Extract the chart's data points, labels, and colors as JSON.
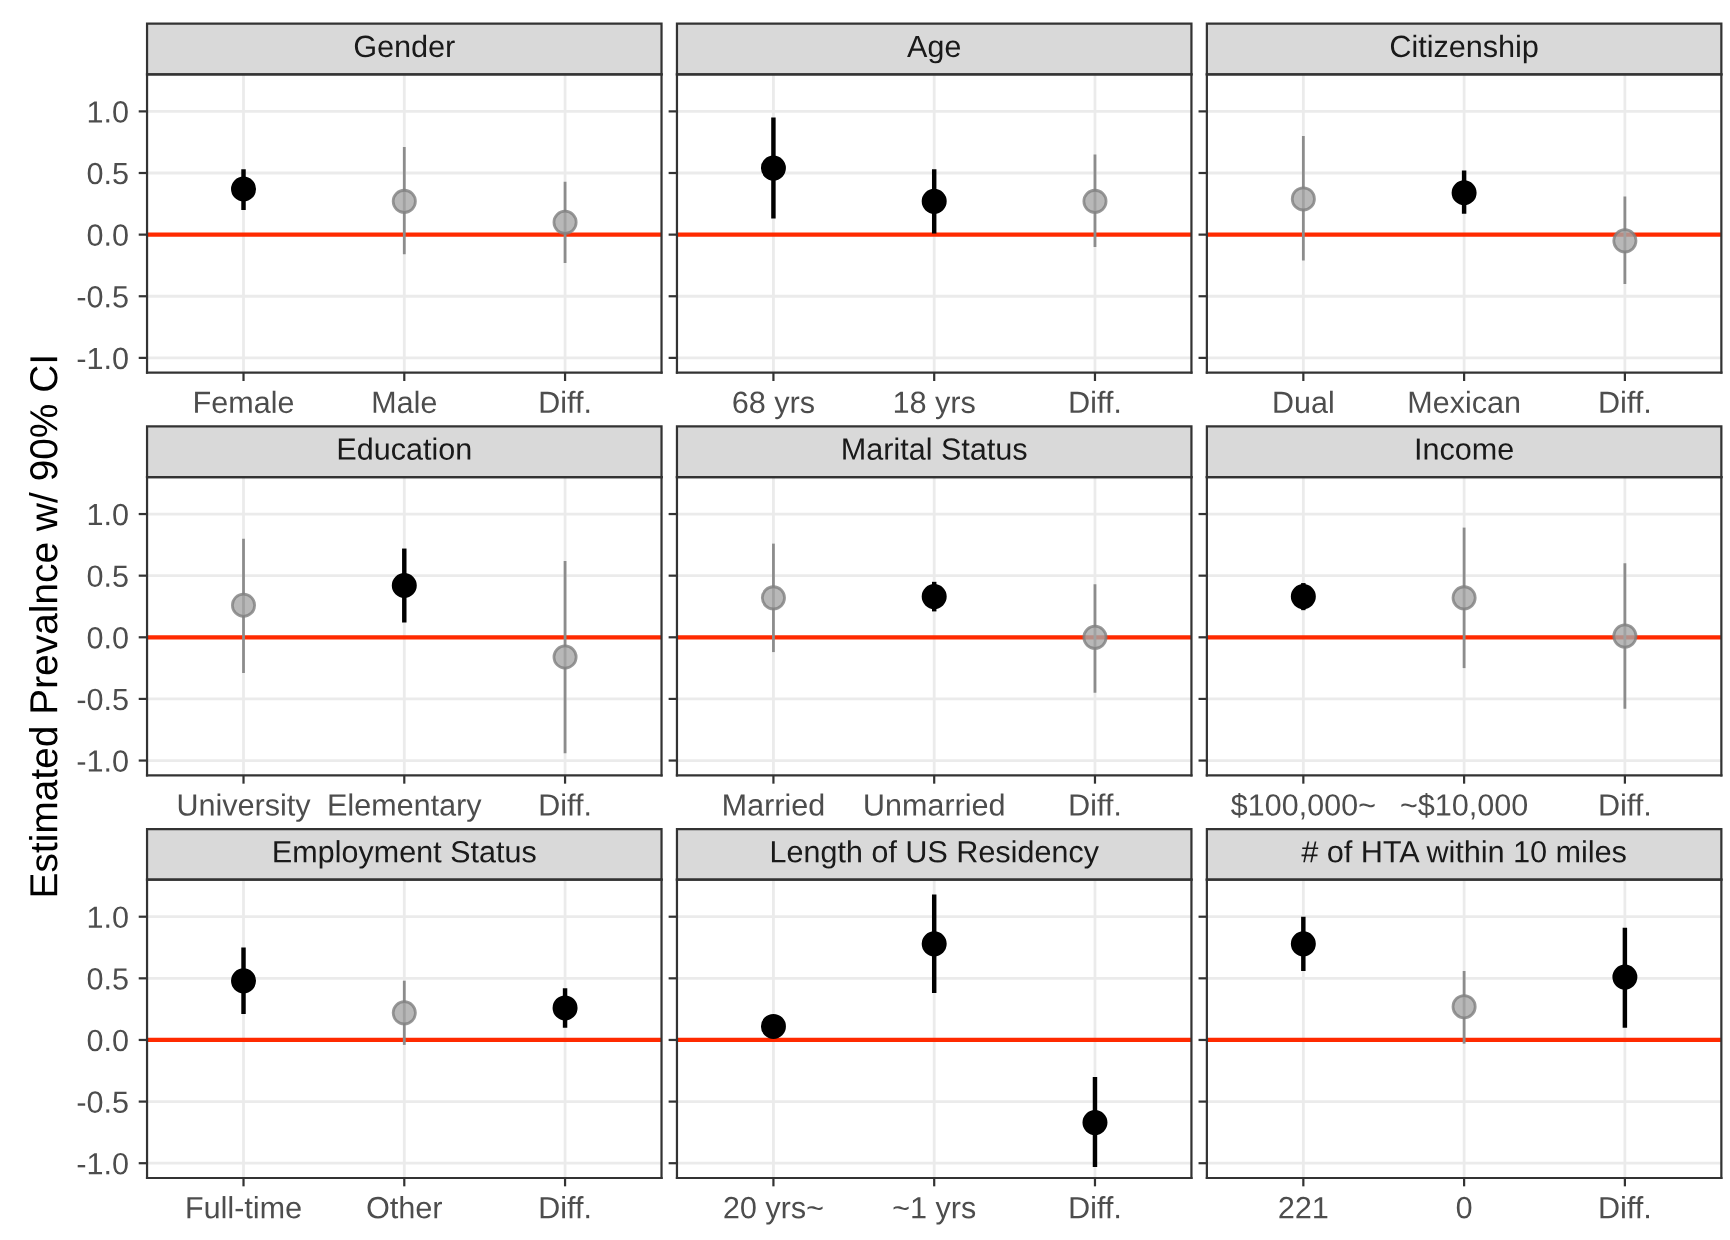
{
  "chart_data": [
    {
      "type": "scatter",
      "title": "Gender",
      "categories": [
        "Female",
        "Male",
        "Diff."
      ],
      "values": [
        0.37,
        0.27,
        0.1
      ],
      "errors": [
        [
          0.2,
          0.53
        ],
        [
          -0.16,
          0.71
        ],
        [
          -0.23,
          0.43
        ]
      ],
      "colors": [
        "#000000",
        "#a6a6a6",
        "#a6a6a6"
      ],
      "ylim": [
        -1.12,
        1.3
      ],
      "yticks": [
        {
          "value": -1,
          "label": "-1.0"
        },
        {
          "value": -0.5,
          "label": "-0.5"
        },
        {
          "value": 0,
          "label": "0.0"
        },
        {
          "value": 0.5,
          "label": "0.5"
        },
        {
          "value": 1,
          "label": "1.0"
        }
      ],
      "ref_lines": [
        {
          "axis": "y",
          "value": 0,
          "color": "#ff2a00"
        }
      ],
      "grid": true,
      "marker": "circle"
    },
    {
      "type": "scatter",
      "title": "Age",
      "categories": [
        "68 yrs",
        "18 yrs",
        "Diff."
      ],
      "values": [
        0.54,
        0.27,
        0.27
      ],
      "errors": [
        [
          0.13,
          0.95
        ],
        [
          0.01,
          0.53
        ],
        [
          -0.1,
          0.65
        ]
      ],
      "colors": [
        "#000000",
        "#000000",
        "#a6a6a6"
      ],
      "ylim": [
        -1.12,
        1.3
      ],
      "yticks": [
        {
          "value": -1,
          "label": null
        },
        {
          "value": -0.5,
          "label": null
        },
        {
          "value": 0,
          "label": null
        },
        {
          "value": 0.5,
          "label": null
        },
        {
          "value": 1,
          "label": null
        }
      ],
      "tick_labels": "x",
      "ref_lines": [
        {
          "axis": "y",
          "value": 0,
          "color": "#ff2a00"
        }
      ],
      "grid": true,
      "marker": "circle"
    },
    {
      "type": "scatter",
      "title": "Citizenship",
      "categories": [
        "Dual",
        "Mexican",
        "Diff."
      ],
      "values": [
        0.29,
        0.34,
        -0.05
      ],
      "errors": [
        [
          -0.21,
          0.8
        ],
        [
          0.17,
          0.52
        ],
        [
          -0.4,
          0.31
        ]
      ],
      "colors": [
        "#a6a6a6",
        "#000000",
        "#a6a6a6"
      ],
      "ylim": [
        -1.12,
        1.3
      ],
      "yticks": [
        {
          "value": -1,
          "label": null
        },
        {
          "value": -0.5,
          "label": null
        },
        {
          "value": 0,
          "label": null
        },
        {
          "value": 0.5,
          "label": null
        },
        {
          "value": 1,
          "label": null
        }
      ],
      "tick_labels": "x",
      "ref_lines": [
        {
          "axis": "y",
          "value": 0,
          "color": "#ff2a00"
        }
      ],
      "grid": true,
      "marker": "circle"
    },
    {
      "type": "scatter",
      "title": "Education",
      "ylabel": "Estimated Prevalnce w/ 90% CI",
      "categories": [
        "University",
        "Elementary",
        "Diff."
      ],
      "values": [
        0.26,
        0.42,
        -0.16
      ],
      "errors": [
        [
          -0.29,
          0.8
        ],
        [
          0.12,
          0.72
        ],
        [
          -0.94,
          0.62
        ]
      ],
      "colors": [
        "#a6a6a6",
        "#000000",
        "#a6a6a6"
      ],
      "ylim": [
        -1.12,
        1.3
      ],
      "yticks": [
        {
          "value": -1,
          "label": "-1.0"
        },
        {
          "value": -0.5,
          "label": "-0.5"
        },
        {
          "value": 0,
          "label": "0.0"
        },
        {
          "value": 0.5,
          "label": "0.5"
        },
        {
          "value": 1,
          "label": "1.0"
        }
      ],
      "ref_lines": [
        {
          "axis": "y",
          "value": 0,
          "color": "#ff2a00"
        }
      ],
      "grid": true,
      "marker": "circle"
    },
    {
      "type": "scatter",
      "title": "Marital Status",
      "categories": [
        "Married",
        "Unmarried",
        "Diff."
      ],
      "values": [
        0.32,
        0.33,
        0.0
      ],
      "errors": [
        [
          -0.12,
          0.76
        ],
        [
          0.21,
          0.45
        ],
        [
          -0.45,
          0.43
        ]
      ],
      "colors": [
        "#a6a6a6",
        "#000000",
        "#a6a6a6"
      ],
      "ylim": [
        -1.12,
        1.3
      ],
      "yticks": [
        {
          "value": -1,
          "label": null
        },
        {
          "value": -0.5,
          "label": null
        },
        {
          "value": 0,
          "label": null
        },
        {
          "value": 0.5,
          "label": null
        },
        {
          "value": 1,
          "label": null
        }
      ],
      "tick_labels": "x",
      "ref_lines": [
        {
          "axis": "y",
          "value": 0,
          "color": "#ff2a00"
        }
      ],
      "grid": true,
      "marker": "circle"
    },
    {
      "type": "scatter",
      "title": "Income",
      "categories": [
        "$100,000~",
        "~$10,000",
        "Diff."
      ],
      "values": [
        0.33,
        0.32,
        0.01
      ],
      "errors": [
        [
          0.22,
          0.44
        ],
        [
          -0.25,
          0.89
        ],
        [
          -0.58,
          0.6
        ]
      ],
      "colors": [
        "#000000",
        "#a6a6a6",
        "#a6a6a6"
      ],
      "ylim": [
        -1.12,
        1.3
      ],
      "yticks": [
        {
          "value": -1,
          "label": null
        },
        {
          "value": -0.5,
          "label": null
        },
        {
          "value": 0,
          "label": null
        },
        {
          "value": 0.5,
          "label": null
        },
        {
          "value": 1,
          "label": null
        }
      ],
      "tick_labels": "x",
      "ref_lines": [
        {
          "axis": "y",
          "value": 0,
          "color": "#ff2a00"
        }
      ],
      "grid": true,
      "marker": "circle"
    },
    {
      "type": "scatter",
      "title": "Employment Status",
      "categories": [
        "Full-time",
        "Other",
        "Diff."
      ],
      "values": [
        0.48,
        0.22,
        0.26
      ],
      "errors": [
        [
          0.21,
          0.75
        ],
        [
          -0.04,
          0.48
        ],
        [
          0.1,
          0.42
        ]
      ],
      "colors": [
        "#000000",
        "#a6a6a6",
        "#000000"
      ],
      "ylim": [
        -1.12,
        1.3
      ],
      "yticks": [
        {
          "value": -1,
          "label": "-1.0"
        },
        {
          "value": -0.5,
          "label": "-0.5"
        },
        {
          "value": 0,
          "label": "0.0"
        },
        {
          "value": 0.5,
          "label": "0.5"
        },
        {
          "value": 1,
          "label": "1.0"
        }
      ],
      "ref_lines": [
        {
          "axis": "y",
          "value": 0,
          "color": "#ff2a00"
        }
      ],
      "grid": true,
      "marker": "circle"
    },
    {
      "type": "scatter",
      "title": "Length of US Residency",
      "categories": [
        "20 yrs~",
        "~1 yrs",
        "Diff."
      ],
      "values": [
        0.11,
        0.78,
        -0.67
      ],
      "errors": [
        null,
        [
          0.38,
          1.18
        ],
        [
          -1.03,
          -0.3
        ]
      ],
      "colors": [
        "#000000",
        "#000000",
        "#000000"
      ],
      "ylim": [
        -1.12,
        1.3
      ],
      "yticks": [
        {
          "value": -1,
          "label": null
        },
        {
          "value": -0.5,
          "label": null
        },
        {
          "value": 0,
          "label": null
        },
        {
          "value": 0.5,
          "label": null
        },
        {
          "value": 1,
          "label": null
        }
      ],
      "tick_labels": "x",
      "ref_lines": [
        {
          "axis": "y",
          "value": 0,
          "color": "#ff2a00"
        }
      ],
      "grid": true,
      "marker": "circle"
    },
    {
      "type": "scatter",
      "title": "# of HTA within 10 miles",
      "categories": [
        "221",
        "0",
        "Diff."
      ],
      "values": [
        0.78,
        0.27,
        0.51
      ],
      "errors": [
        [
          0.56,
          1.0
        ],
        [
          -0.03,
          0.56
        ],
        [
          0.1,
          0.91
        ]
      ],
      "colors": [
        "#000000",
        "#a6a6a6",
        "#000000"
      ],
      "ylim": [
        -1.12,
        1.3
      ],
      "yticks": [
        {
          "value": -1,
          "label": null
        },
        {
          "value": -0.5,
          "label": null
        },
        {
          "value": 0,
          "label": null
        },
        {
          "value": 0.5,
          "label": null
        },
        {
          "value": 1,
          "label": null
        }
      ],
      "tick_labels": "x",
      "ref_lines": [
        {
          "axis": "y",
          "value": 0,
          "color": "#ff2a00"
        }
      ],
      "grid": true,
      "marker": "circle"
    }
  ]
}
